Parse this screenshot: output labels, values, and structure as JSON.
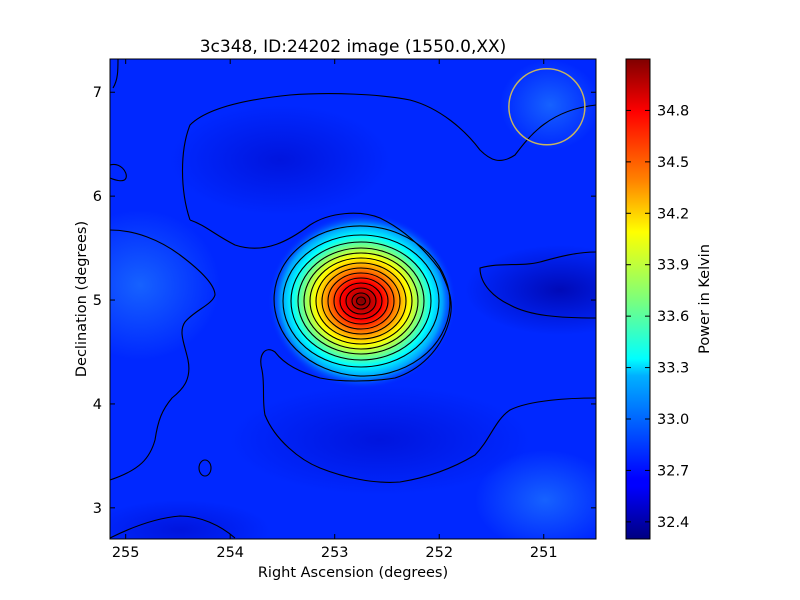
{
  "chart_data": {
    "type": "heatmap",
    "title": "3c348, ID:24202 image (1550.0,XX)",
    "xlabel": "Right Ascension (degrees)",
    "ylabel": "Declination (degrees)",
    "colorbar_label": "Power in Kelvin",
    "colormap": "jet",
    "xlim": [
      255.15,
      250.5
    ],
    "ylim": [
      2.7,
      7.32
    ],
    "x_ticks": [
      255,
      254,
      253,
      252,
      251
    ],
    "x_tick_labels": [
      "255",
      "254",
      "253",
      "252",
      "251"
    ],
    "y_ticks": [
      3,
      4,
      5,
      6,
      7
    ],
    "y_tick_labels": [
      "3",
      "4",
      "5",
      "6",
      "7"
    ],
    "colorbar_range": [
      32.3,
      35.1
    ],
    "colorbar_ticks": [
      32.4,
      32.7,
      33.0,
      33.3,
      33.6,
      33.9,
      34.2,
      34.5,
      34.8
    ],
    "colorbar_tick_labels": [
      "32.4",
      "32.7",
      "33.0",
      "33.3",
      "33.6",
      "33.9",
      "34.2",
      "34.5",
      "34.8"
    ],
    "source": {
      "ra": 252.78,
      "dec": 5.0,
      "peak_kelvin": 35.05
    },
    "background_kelvin": 32.65,
    "beam_circle": {
      "ra": 250.97,
      "dec": 6.86,
      "color": "#c8b560"
    },
    "contours": "black",
    "grid": false
  }
}
